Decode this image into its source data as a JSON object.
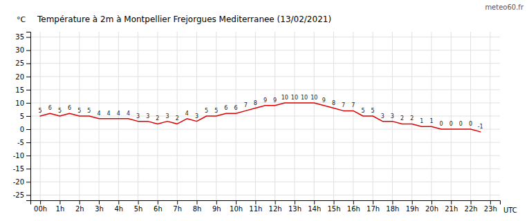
{
  "chart_data": {
    "type": "line",
    "title": "Température à 2m à Montpellier Frejorgues Mediterranee (13/02/2021)",
    "ylabel": "°C",
    "xlabel": "UTC",
    "annotations": [
      "meteo60.fr"
    ],
    "x": [
      0,
      0.5,
      1,
      1.5,
      2,
      2.5,
      3,
      3.5,
      4,
      4.5,
      5,
      5.5,
      6,
      6.5,
      7,
      7.5,
      8,
      8.5,
      9,
      9.5,
      10,
      10.5,
      11,
      11.5,
      12,
      12.5,
      13,
      13.5,
      14,
      14.5,
      15,
      15.5,
      16,
      16.5,
      17,
      17.5,
      18,
      18.5,
      19,
      19.5,
      20,
      20.5,
      21,
      21.5,
      22,
      22.5
    ],
    "values": [
      5,
      6,
      5,
      6,
      5,
      5,
      4,
      4,
      4,
      4,
      3,
      3,
      2,
      3,
      2,
      4,
      3,
      5,
      5,
      6,
      6,
      7,
      8,
      9,
      9,
      10,
      10,
      10,
      10,
      9,
      8,
      7,
      7,
      5,
      5,
      3,
      3,
      2,
      2,
      1,
      1,
      0,
      0,
      0,
      0,
      -1
    ],
    "color": "#dd0000",
    "xlim": [
      -0.5,
      23.5
    ],
    "xticks": [
      {
        "value": 0,
        "label": "00h"
      },
      {
        "value": 1,
        "label": "1h"
      },
      {
        "value": 2,
        "label": "2h"
      },
      {
        "value": 3,
        "label": "3h"
      },
      {
        "value": 4,
        "label": "4h"
      },
      {
        "value": 5,
        "label": "5h"
      },
      {
        "value": 6,
        "label": "6h"
      },
      {
        "value": 7,
        "label": "7h"
      },
      {
        "value": 8,
        "label": "8h"
      },
      {
        "value": 9,
        "label": "9h"
      },
      {
        "value": 10,
        "label": "10h"
      },
      {
        "value": 11,
        "label": "11h"
      },
      {
        "value": 12,
        "label": "12h"
      },
      {
        "value": 13,
        "label": "13h"
      },
      {
        "value": 14,
        "label": "14h"
      },
      {
        "value": 15,
        "label": "15h"
      },
      {
        "value": 16,
        "label": "16h"
      },
      {
        "value": 17,
        "label": "17h"
      },
      {
        "value": 18,
        "label": "18h"
      },
      {
        "value": 19,
        "label": "19h"
      },
      {
        "value": 20,
        "label": "20h"
      },
      {
        "value": 21,
        "label": "21h"
      },
      {
        "value": 22,
        "label": "22h"
      },
      {
        "value": 23,
        "label": "23h"
      }
    ],
    "ylim": [
      -27,
      37
    ],
    "yticks": [
      -25,
      -20,
      -15,
      -10,
      -5,
      0,
      5,
      10,
      15,
      20,
      25,
      30,
      35
    ],
    "grid": true,
    "data_labels": true
  }
}
